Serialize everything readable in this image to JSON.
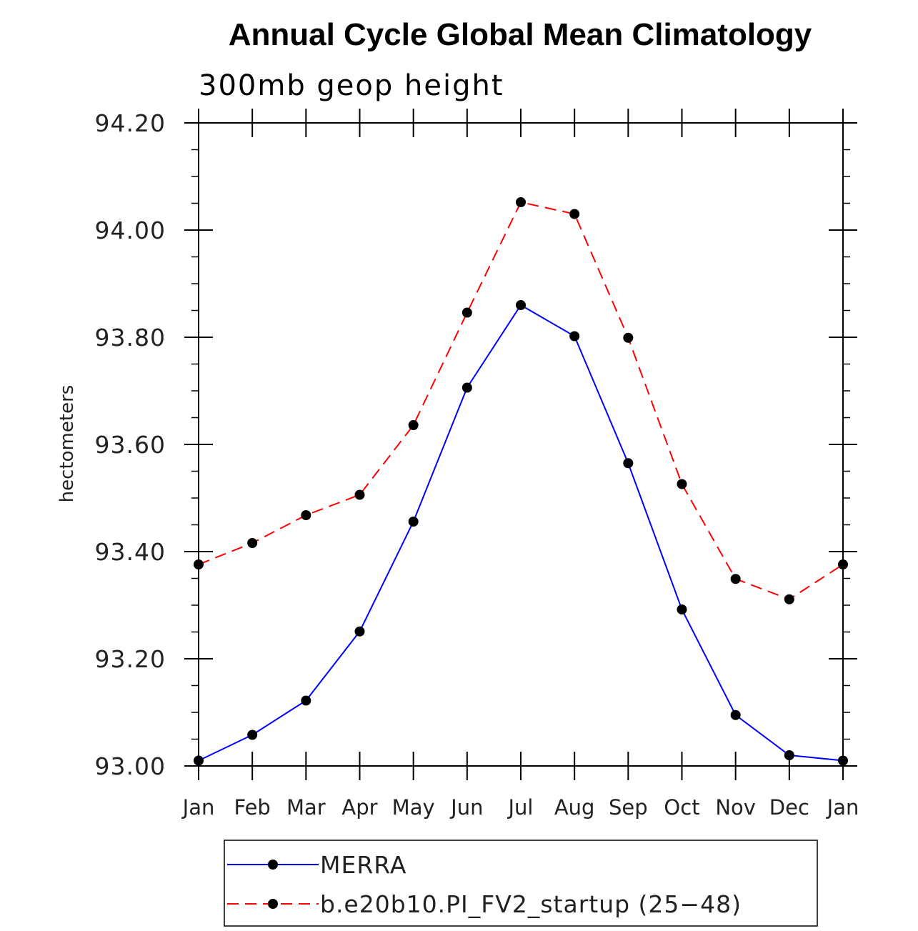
{
  "chart_data": {
    "type": "line",
    "title": "Annual Cycle Global Mean Climatology",
    "subtitle": "300mb geop height",
    "ylabel": "hectometers",
    "xlabel": "",
    "categories": [
      "Jan",
      "Feb",
      "Mar",
      "Apr",
      "May",
      "Jun",
      "Jul",
      "Aug",
      "Sep",
      "Oct",
      "Nov",
      "Dec",
      "Jan"
    ],
    "ylim": [
      93.0,
      94.2
    ],
    "yticks": [
      "93.00",
      "93.20",
      "93.40",
      "93.60",
      "93.80",
      "94.00",
      "94.20"
    ],
    "ytick_values": [
      93.0,
      93.2,
      93.4,
      93.6,
      93.8,
      94.0,
      94.2
    ],
    "legend_position": "bottom",
    "series": [
      {
        "name": "MERRA",
        "color": "#0000ff",
        "dash": "solid",
        "values": [
          93.01,
          93.058,
          93.122,
          93.251,
          93.456,
          93.706,
          93.86,
          93.802,
          93.565,
          93.292,
          93.095,
          93.02,
          93.01
        ]
      },
      {
        "name": "b.e20b10.PI_FV2_startup (25−48)",
        "color": "#ff0000",
        "dash": "dashed",
        "values": [
          93.376,
          93.416,
          93.468,
          93.506,
          93.636,
          93.846,
          94.052,
          94.03,
          93.799,
          93.526,
          93.349,
          93.311,
          93.376
        ]
      }
    ]
  }
}
